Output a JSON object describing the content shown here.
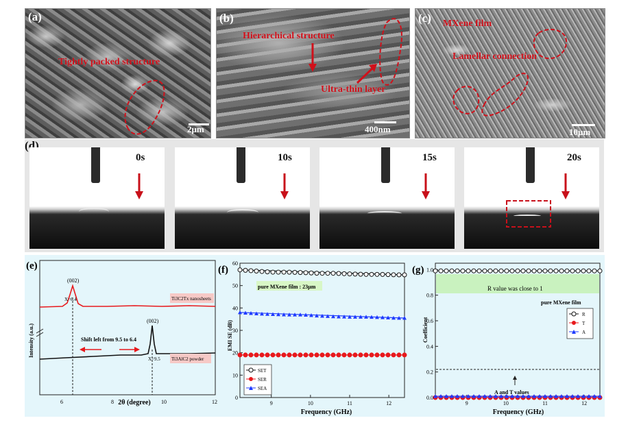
{
  "sem_panels": [
    {
      "letter": "(a)",
      "labels": [
        "Tightly packed structure"
      ],
      "scale": "2μm"
    },
    {
      "letter": "(b)",
      "labels": [
        "Hierarchical structure",
        "Ultra-thin layer"
      ],
      "scale": "400nm"
    },
    {
      "letter": "(c)",
      "labels": [
        "MXene film",
        "Lamellar connection"
      ],
      "scale": "10μm"
    }
  ],
  "contact_angle": {
    "letter": "(d)",
    "times": [
      "0s",
      "10s",
      "15s",
      "20s"
    ]
  },
  "panel_e": {
    "letter": "(e)",
    "xlabel": "2θ (degree)",
    "ylabel": "Intensity (a.u.)",
    "peak1": "(002)",
    "peak1_x": "X=6.4",
    "peak2": "(002)",
    "peak2_x": "X=9.5",
    "shift": "Shift left from 9.5 to 6.4",
    "label_top": "Ti3C2Tx nanosheets",
    "label_bottom": "Ti3AlC2 powder",
    "xticks": [
      "6",
      "8",
      "10",
      "12"
    ]
  },
  "panel_f": {
    "letter": "(f)",
    "xlabel": "Frequency (GHz)",
    "ylabel": "EMI SE (dB)",
    "note": "pure MXene film :  23μm",
    "legend": [
      "SET",
      "SER",
      "SEA"
    ],
    "yticks": [
      "0",
      "10",
      "20",
      "30",
      "40",
      "50",
      "60"
    ],
    "xticks": [
      "9",
      "10",
      "11",
      "12"
    ]
  },
  "panel_g": {
    "letter": "(g)",
    "xlabel": "Frequency (GHz)",
    "ylabel": "Coefficient",
    "note_r": "R value was close to 1",
    "note_film": "pure MXene film",
    "note_at": "A and T values",
    "legend": [
      "R",
      "T",
      "A"
    ],
    "yticks": [
      "0.0",
      "0.2",
      "0.4",
      "0.6",
      "0.8",
      "1.0"
    ],
    "xticks": [
      "9",
      "10",
      "11",
      "12"
    ]
  },
  "colors": {
    "red": "#e8191c",
    "blue": "#1f3bff",
    "black": "#111111",
    "annot": "#d0101a"
  },
  "chart_data": [
    {
      "type": "line",
      "title": "",
      "xlabel": "2θ (degree)",
      "ylabel": "Intensity (a.u.)",
      "xlim": [
        5,
        12
      ],
      "series": [
        {
          "name": "Ti3C2Tx nanosheets",
          "peak_x": 6.4
        },
        {
          "name": "Ti3AlC2 powder",
          "peak_x": 9.5
        }
      ]
    },
    {
      "type": "scatter",
      "title": "",
      "xlabel": "Frequency (GHz)",
      "ylabel": "EMI SE (dB)",
      "xlim": [
        8.2,
        12.4
      ],
      "ylim": [
        0,
        60
      ],
      "x": [
        8.2,
        8.6,
        9.0,
        9.4,
        9.8,
        10.2,
        10.6,
        11.0,
        11.4,
        11.8,
        12.2,
        12.4
      ],
      "series": [
        {
          "name": "SET",
          "values": [
            57,
            56.5,
            56,
            56,
            55.8,
            55.5,
            55.5,
            55.2,
            55,
            55,
            54.8,
            54.8
          ]
        },
        {
          "name": "SER",
          "values": [
            19,
            19,
            19,
            19,
            19,
            19,
            19,
            19,
            19,
            19,
            19,
            19
          ]
        },
        {
          "name": "SEA",
          "values": [
            38,
            37.5,
            37.2,
            37,
            37,
            36.5,
            36.2,
            36,
            36,
            35.8,
            35.5,
            35.5
          ]
        }
      ]
    },
    {
      "type": "scatter",
      "title": "",
      "xlabel": "Frequency (GHz)",
      "ylabel": "Coefficient",
      "xlim": [
        8.2,
        12.4
      ],
      "ylim": [
        0,
        1.05
      ],
      "x": [
        8.2,
        8.6,
        9.0,
        9.4,
        9.8,
        10.2,
        10.6,
        11.0,
        11.4,
        11.8,
        12.2,
        12.4
      ],
      "series": [
        {
          "name": "R",
          "values": [
            0.99,
            0.99,
            0.99,
            0.99,
            0.99,
            0.99,
            0.99,
            0.99,
            0.99,
            0.99,
            0.99,
            0.99
          ]
        },
        {
          "name": "T",
          "values": [
            0.0,
            0.0,
            0.0,
            0.0,
            0.0,
            0.0,
            0.0,
            0.0,
            0.0,
            0.0,
            0.0,
            0.0
          ]
        },
        {
          "name": "A",
          "values": [
            0.01,
            0.01,
            0.01,
            0.01,
            0.01,
            0.01,
            0.01,
            0.01,
            0.01,
            0.01,
            0.01,
            0.01
          ]
        }
      ]
    }
  ]
}
